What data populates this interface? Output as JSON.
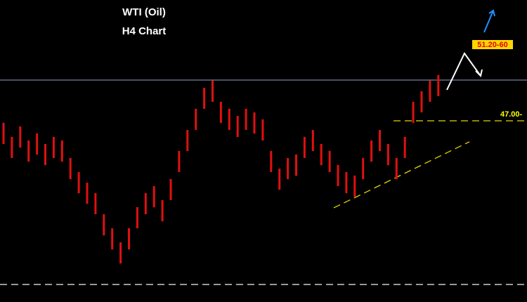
{
  "chart_data": {
    "type": "range-bar",
    "title": "WTI (Oil)",
    "subtitle": "H4 Chart",
    "color": "#e01010",
    "ylim": [
      37.07,
      53.62
    ],
    "high": [
      46.89,
      46.12,
      46.69,
      45.92,
      46.31,
      45.73,
      46.12,
      45.92,
      44.96,
      44.19,
      43.61,
      43.04,
      41.88,
      41.11,
      40.34,
      41.11,
      42.27,
      43.04,
      43.42,
      42.65,
      43.81,
      45.35,
      46.5,
      47.66,
      48.81,
      49.2,
      48.04,
      47.66,
      47.27,
      47.66,
      47.46,
      47.08,
      45.35,
      44.38,
      44.96,
      45.15,
      46.12,
      46.5,
      45.73,
      45.35,
      44.58,
      44.19,
      44.0,
      44.96,
      45.92,
      46.5,
      45.73,
      44.96,
      46.12,
      48.04,
      48.62,
      49.2,
      49.51
    ],
    "low": [
      45.73,
      44.96,
      45.53,
      44.76,
      45.15,
      44.57,
      44.96,
      44.76,
      43.8,
      43.03,
      42.45,
      41.88,
      40.72,
      39.95,
      39.18,
      39.95,
      41.11,
      41.88,
      42.26,
      41.49,
      42.65,
      44.19,
      45.34,
      46.5,
      47.65,
      48.04,
      46.88,
      46.5,
      46.11,
      46.5,
      46.3,
      45.92,
      44.19,
      43.22,
      43.8,
      43.99,
      44.96,
      45.34,
      44.57,
      44.19,
      43.42,
      43.03,
      42.84,
      43.8,
      44.76,
      45.34,
      44.57,
      43.8,
      44.96,
      46.88,
      47.46,
      48.04,
      48.35
    ],
    "resistance": 49.23,
    "support": {
      "value": 47.0,
      "label": "47.00-"
    },
    "bottom_level": 38.03,
    "trendline": [
      42.23,
      45.85
    ],
    "target": "51.20-60"
  }
}
